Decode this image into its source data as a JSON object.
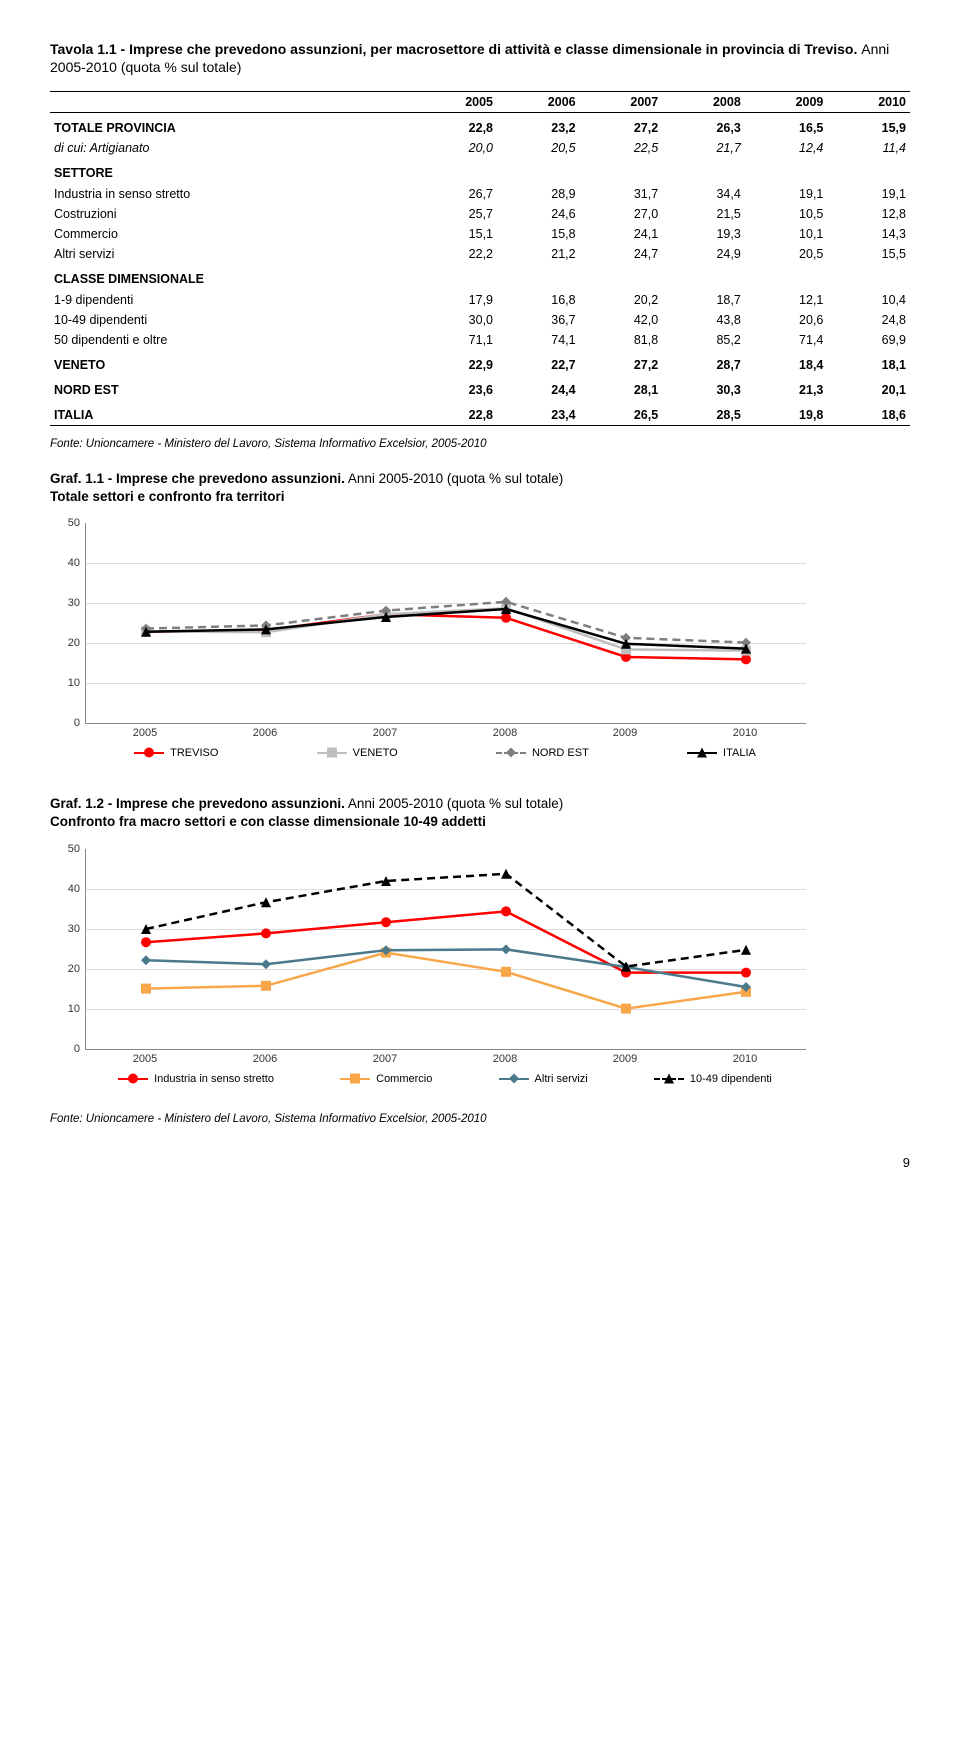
{
  "table": {
    "title_bold": "Tavola 1.1 - Imprese che prevedono assunzioni, per macrosettore di attività e classe dimensionale in provincia di Treviso.",
    "title_sub": "Anni 2005-2010 (quota % sul totale)",
    "years": [
      "2005",
      "2006",
      "2007",
      "2008",
      "2009",
      "2010"
    ],
    "rows": [
      {
        "label": "TOTALE PROVINCIA",
        "cls": "total-row",
        "vals": [
          "22,8",
          "23,2",
          "27,2",
          "26,3",
          "16,5",
          "15,9"
        ]
      },
      {
        "label": "di cui: Artigianato",
        "cls": "ital",
        "vals": [
          "20,0",
          "20,5",
          "22,5",
          "21,7",
          "12,4",
          "11,4"
        ]
      },
      {
        "label": "SETTORE",
        "cls": "sec-head",
        "vals": [
          "",
          "",
          "",
          "",
          "",
          ""
        ]
      },
      {
        "label": "Industria in senso stretto",
        "cls": "",
        "vals": [
          "26,7",
          "28,9",
          "31,7",
          "34,4",
          "19,1",
          "19,1"
        ]
      },
      {
        "label": "Costruzioni",
        "cls": "",
        "vals": [
          "25,7",
          "24,6",
          "27,0",
          "21,5",
          "10,5",
          "12,8"
        ]
      },
      {
        "label": "Commercio",
        "cls": "",
        "vals": [
          "15,1",
          "15,8",
          "24,1",
          "19,3",
          "10,1",
          "14,3"
        ]
      },
      {
        "label": "Altri servizi",
        "cls": "",
        "vals": [
          "22,2",
          "21,2",
          "24,7",
          "24,9",
          "20,5",
          "15,5"
        ]
      },
      {
        "label": "CLASSE DIMENSIONALE",
        "cls": "sec-head",
        "vals": [
          "",
          "",
          "",
          "",
          "",
          ""
        ]
      },
      {
        "label": "1-9 dipendenti",
        "cls": "",
        "vals": [
          "17,9",
          "16,8",
          "20,2",
          "18,7",
          "12,1",
          "10,4"
        ]
      },
      {
        "label": "10-49 dipendenti",
        "cls": "",
        "vals": [
          "30,0",
          "36,7",
          "42,0",
          "43,8",
          "20,6",
          "24,8"
        ]
      },
      {
        "label": "50 dipendenti e oltre",
        "cls": "",
        "vals": [
          "71,1",
          "74,1",
          "81,8",
          "85,2",
          "71,4",
          "69,9"
        ]
      },
      {
        "label": "VENETO",
        "cls": "bold",
        "vals": [
          "22,9",
          "22,7",
          "27,2",
          "28,7",
          "18,4",
          "18,1"
        ]
      },
      {
        "label": "NORD EST",
        "cls": "bold",
        "vals": [
          "23,6",
          "24,4",
          "28,1",
          "30,3",
          "21,3",
          "20,1"
        ]
      },
      {
        "label": "ITALIA",
        "cls": "bold last",
        "vals": [
          "22,8",
          "23,4",
          "26,5",
          "28,5",
          "19,8",
          "18,6"
        ]
      }
    ]
  },
  "source": "Fonte: Unioncamere - Ministero del Lavoro, Sistema Informativo Excelsior, 2005-2010",
  "chart1": {
    "title_bold": "Graf. 1.1 - Imprese che prevedono assunzioni.",
    "title_rest": " Anni 2005-2010 (quota % sul totale)",
    "title_line2": "Totale settori e confronto fra territori",
    "ylim": [
      0,
      50
    ],
    "ytick_step": 10,
    "categories": [
      "2005",
      "2006",
      "2007",
      "2008",
      "2009",
      "2010"
    ],
    "series": [
      {
        "name": "TREVISO",
        "label": "TREVISO",
        "color": "#ff0000",
        "dash": "",
        "marker": "circle",
        "vals": [
          22.8,
          23.2,
          27.2,
          26.3,
          16.5,
          15.9
        ]
      },
      {
        "name": "VENETO",
        "label": "VENETO",
        "color": "#bfbfbf",
        "dash": "",
        "marker": "square",
        "vals": [
          22.9,
          22.7,
          27.2,
          28.7,
          18.4,
          18.1
        ]
      },
      {
        "name": "NORD EST",
        "label": "NORD EST",
        "color": "#7f7f7f",
        "dash": "8,5",
        "marker": "diamond",
        "vals": [
          23.6,
          24.4,
          28.1,
          30.3,
          21.3,
          20.1
        ]
      },
      {
        "name": "ITALIA",
        "label": "ITALIA",
        "color": "#000000",
        "dash": "",
        "marker": "triangle",
        "vals": [
          22.8,
          23.4,
          26.5,
          28.5,
          19.8,
          18.6
        ]
      }
    ]
  },
  "chart2": {
    "title_bold": "Graf. 1.2 - Imprese che prevedono assunzioni.",
    "title_rest": " Anni 2005-2010 (quota % sul totale)",
    "title_line2": "Confronto fra macro settori e con classe dimensionale 10-49 addetti",
    "ylim": [
      0,
      50
    ],
    "ytick_step": 10,
    "categories": [
      "2005",
      "2006",
      "2007",
      "2008",
      "2009",
      "2010"
    ],
    "series": [
      {
        "name": "Industria",
        "label": "Industria in senso stretto",
        "color": "#ff0000",
        "dash": "",
        "marker": "circle",
        "vals": [
          26.7,
          28.9,
          31.7,
          34.4,
          19.1,
          19.1
        ]
      },
      {
        "name": "Commercio",
        "label": "Commercio",
        "color": "#f7a64a",
        "dash": "",
        "marker": "square",
        "vals": [
          15.1,
          15.8,
          24.1,
          19.3,
          10.1,
          14.3
        ]
      },
      {
        "name": "Altri servizi",
        "label": "Altri servizi",
        "color": "#4a7a8c",
        "dash": "",
        "marker": "diamond",
        "vals": [
          22.2,
          21.2,
          24.7,
          24.9,
          20.5,
          15.5
        ]
      },
      {
        "name": "10-49",
        "label": "10-49 dipendenti",
        "color": "#000000",
        "dash": "8,5",
        "marker": "triangle",
        "vals": [
          30.0,
          36.7,
          42.0,
          43.8,
          20.6,
          24.8
        ]
      }
    ]
  },
  "page_number": "9"
}
